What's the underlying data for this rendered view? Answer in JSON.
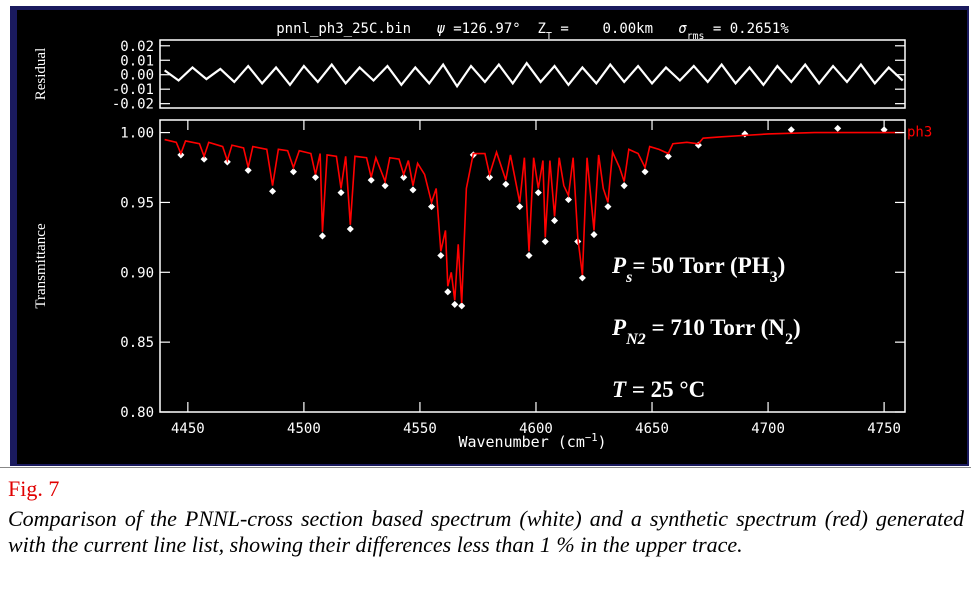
{
  "chart_data": [
    {
      "type": "line",
      "title_parts": [
        {
          "text": "pnnl_ph3_25C.bin   "
        },
        {
          "text": "ψ",
          "style": "italic"
        },
        {
          "text": " =126.97°  Z"
        },
        {
          "text": "T",
          "style": "sub"
        },
        {
          "text": " =    0.00km   "
        },
        {
          "text": "σ",
          "style": "italic"
        },
        {
          "text": "rms",
          "style": "sub"
        },
        {
          "text": " = 0.2651%"
        }
      ],
      "y_label": "Residual",
      "xlim": [
        4438,
        4759
      ],
      "ylim": [
        -0.023,
        0.024
      ],
      "yticks": [
        0.02,
        0.01,
        {
          "value": 0,
          "label": "0.00"
        },
        -0.01,
        -0.02
      ],
      "series": [
        {
          "color": "#ffffff",
          "mode": "line",
          "x": [
            4440,
            4446,
            4452,
            4458,
            4464,
            4470,
            4476,
            4482,
            4488,
            4494,
            4500,
            4506,
            4512,
            4518,
            4524,
            4530,
            4536,
            4542,
            4548,
            4554,
            4560,
            4566,
            4572,
            4578,
            4584,
            4590,
            4596,
            4602,
            4608,
            4614,
            4620,
            4626,
            4632,
            4638,
            4644,
            4650,
            4656,
            4662,
            4668,
            4674,
            4680,
            4686,
            4692,
            4698,
            4704,
            4710,
            4716,
            4722,
            4728,
            4734,
            4740,
            4746,
            4752,
            4758
          ],
          "values": [
            0.003,
            -0.004,
            0.005,
            -0.003,
            0.004,
            -0.005,
            0.006,
            -0.006,
            0.005,
            -0.007,
            0.006,
            -0.005,
            0.007,
            -0.006,
            0.005,
            -0.004,
            0.006,
            -0.007,
            0.005,
            -0.006,
            0.007,
            -0.008,
            0.006,
            -0.005,
            0.007,
            -0.006,
            0.008,
            -0.005,
            0.006,
            -0.007,
            0.005,
            -0.006,
            0.007,
            -0.005,
            0.006,
            -0.006,
            0.005,
            -0.004,
            0.006,
            -0.005,
            0.007,
            -0.006,
            0.005,
            -0.007,
            0.006,
            -0.005,
            0.007,
            -0.006,
            0.006,
            -0.005,
            0.007,
            -0.006,
            0.005,
            -0.004
          ]
        }
      ]
    },
    {
      "type": "line",
      "y_label": "Transmittance",
      "x_label_parts": [
        {
          "text": "Wavenumber (cm"
        },
        {
          "text": "−1",
          "style": "sup"
        },
        {
          "text": ")"
        }
      ],
      "xlim": [
        4438,
        4759
      ],
      "ylim": [
        0.8,
        1.009
      ],
      "xticks": [
        4450,
        4500,
        4550,
        4600,
        4650,
        4700,
        4750
      ],
      "yticks": [
        {
          "value": 0.8,
          "label": "0.80"
        },
        0.85,
        {
          "value": 0.9,
          "label": "0.90"
        },
        0.95,
        {
          "value": 1,
          "label": "1.00"
        }
      ],
      "annotations": [
        {
          "parts": [
            {
              "text": "P",
              "style": "italic"
            },
            {
              "text": "s",
              "style": "sub-italic"
            },
            {
              "text": "= 50 Torr (PH"
            },
            {
              "text": "3",
              "style": "sub"
            },
            {
              "text": ")"
            }
          ]
        },
        {
          "parts": [
            {
              "text": "P",
              "style": "italic"
            },
            {
              "text": "N2",
              "style": "sub-italic"
            },
            {
              "text": " = 710 Torr (N"
            },
            {
              "text": "2",
              "style": "sub"
            },
            {
              "text": ")"
            }
          ]
        },
        {
          "parts": [
            {
              "text": "T",
              "style": "italic"
            },
            {
              "text": " = 25 °C"
            }
          ]
        }
      ],
      "series": [
        {
          "color": "#ffffff",
          "mode": "markers",
          "x": [
            4447,
            4457,
            4467,
            4476,
            4486.5,
            4495.5,
            4505,
            4508,
            4516,
            4520,
            4529,
            4535,
            4543,
            4547,
            4555,
            4559,
            4562,
            4565,
            4568,
            4573,
            4580,
            4587,
            4593,
            4597,
            4601,
            4604,
            4608,
            4614,
            4618,
            4620,
            4625,
            4631,
            4638,
            4647,
            4657,
            4670,
            4690,
            4710,
            4730,
            4750
          ],
          "values": [
            0.984,
            0.981,
            0.979,
            0.973,
            0.958,
            0.972,
            0.968,
            0.926,
            0.957,
            0.931,
            0.966,
            0.962,
            0.968,
            0.959,
            0.947,
            0.912,
            0.886,
            0.877,
            0.876,
            0.984,
            0.968,
            0.963,
            0.947,
            0.912,
            0.957,
            0.922,
            0.937,
            0.952,
            0.922,
            0.896,
            0.927,
            0.947,
            0.962,
            0.972,
            0.983,
            0.991,
            0.999,
            1.002,
            1.003,
            1.002
          ]
        },
        {
          "name": "ph3",
          "color": "#ff0000",
          "mode": "line",
          "x": [
            4440,
            4445,
            4447,
            4449,
            4455,
            4457,
            4459,
            4465,
            4467,
            4469,
            4474,
            4476,
            4478,
            4484,
            4486.5,
            4489,
            4493,
            4495.5,
            4498,
            4503,
            4505,
            4507,
            4508,
            4510,
            4514,
            4516,
            4518,
            4520,
            4522,
            4527,
            4529,
            4531,
            4535,
            4537,
            4541,
            4543,
            4545,
            4547,
            4549,
            4552,
            4555,
            4557,
            4559,
            4561,
            4562,
            4563.5,
            4565,
            4566.5,
            4568,
            4570,
            4573,
            4578,
            4580,
            4583,
            4587,
            4589,
            4593,
            4595,
            4597,
            4599,
            4601,
            4603,
            4604,
            4606,
            4608,
            4610,
            4612,
            4614,
            4616,
            4618,
            4620,
            4622,
            4625,
            4627,
            4629,
            4631,
            4633,
            4636,
            4638,
            4640,
            4644,
            4647,
            4649,
            4653,
            4657,
            4659,
            4665,
            4670,
            4672,
            4680,
            4690,
            4700,
            4720,
            4740,
            4758
          ],
          "values": [
            0.995,
            0.993,
            0.985,
            0.994,
            0.992,
            0.983,
            0.993,
            0.99,
            0.98,
            0.991,
            0.989,
            0.975,
            0.99,
            0.988,
            0.962,
            0.988,
            0.987,
            0.975,
            0.987,
            0.985,
            0.97,
            0.985,
            0.929,
            0.984,
            0.983,
            0.96,
            0.983,
            0.934,
            0.983,
            0.982,
            0.968,
            0.982,
            0.965,
            0.982,
            0.981,
            0.97,
            0.98,
            0.962,
            0.978,
            0.97,
            0.95,
            0.96,
            0.915,
            0.93,
            0.89,
            0.9,
            0.88,
            0.92,
            0.878,
            0.96,
            0.985,
            0.985,
            0.97,
            0.986,
            0.966,
            0.984,
            0.95,
            0.982,
            0.915,
            0.982,
            0.96,
            0.98,
            0.925,
            0.98,
            0.94,
            0.982,
            0.962,
            0.955,
            0.982,
            0.925,
            0.898,
            0.982,
            0.93,
            0.984,
            0.96,
            0.95,
            0.986,
            0.975,
            0.965,
            0.988,
            0.985,
            0.975,
            0.99,
            0.988,
            0.985,
            0.992,
            0.993,
            0.992,
            0.996,
            0.997,
            0.998,
            0.999,
            1,
            1,
            1
          ]
        }
      ]
    }
  ],
  "caption": {
    "label": "Fig. 7",
    "text": "Comparison of the PNNL-cross section based spectrum (white) and a synthetic spectrum (red) generated with the current line list, showing their differences less than 1 % in the upper trace."
  }
}
